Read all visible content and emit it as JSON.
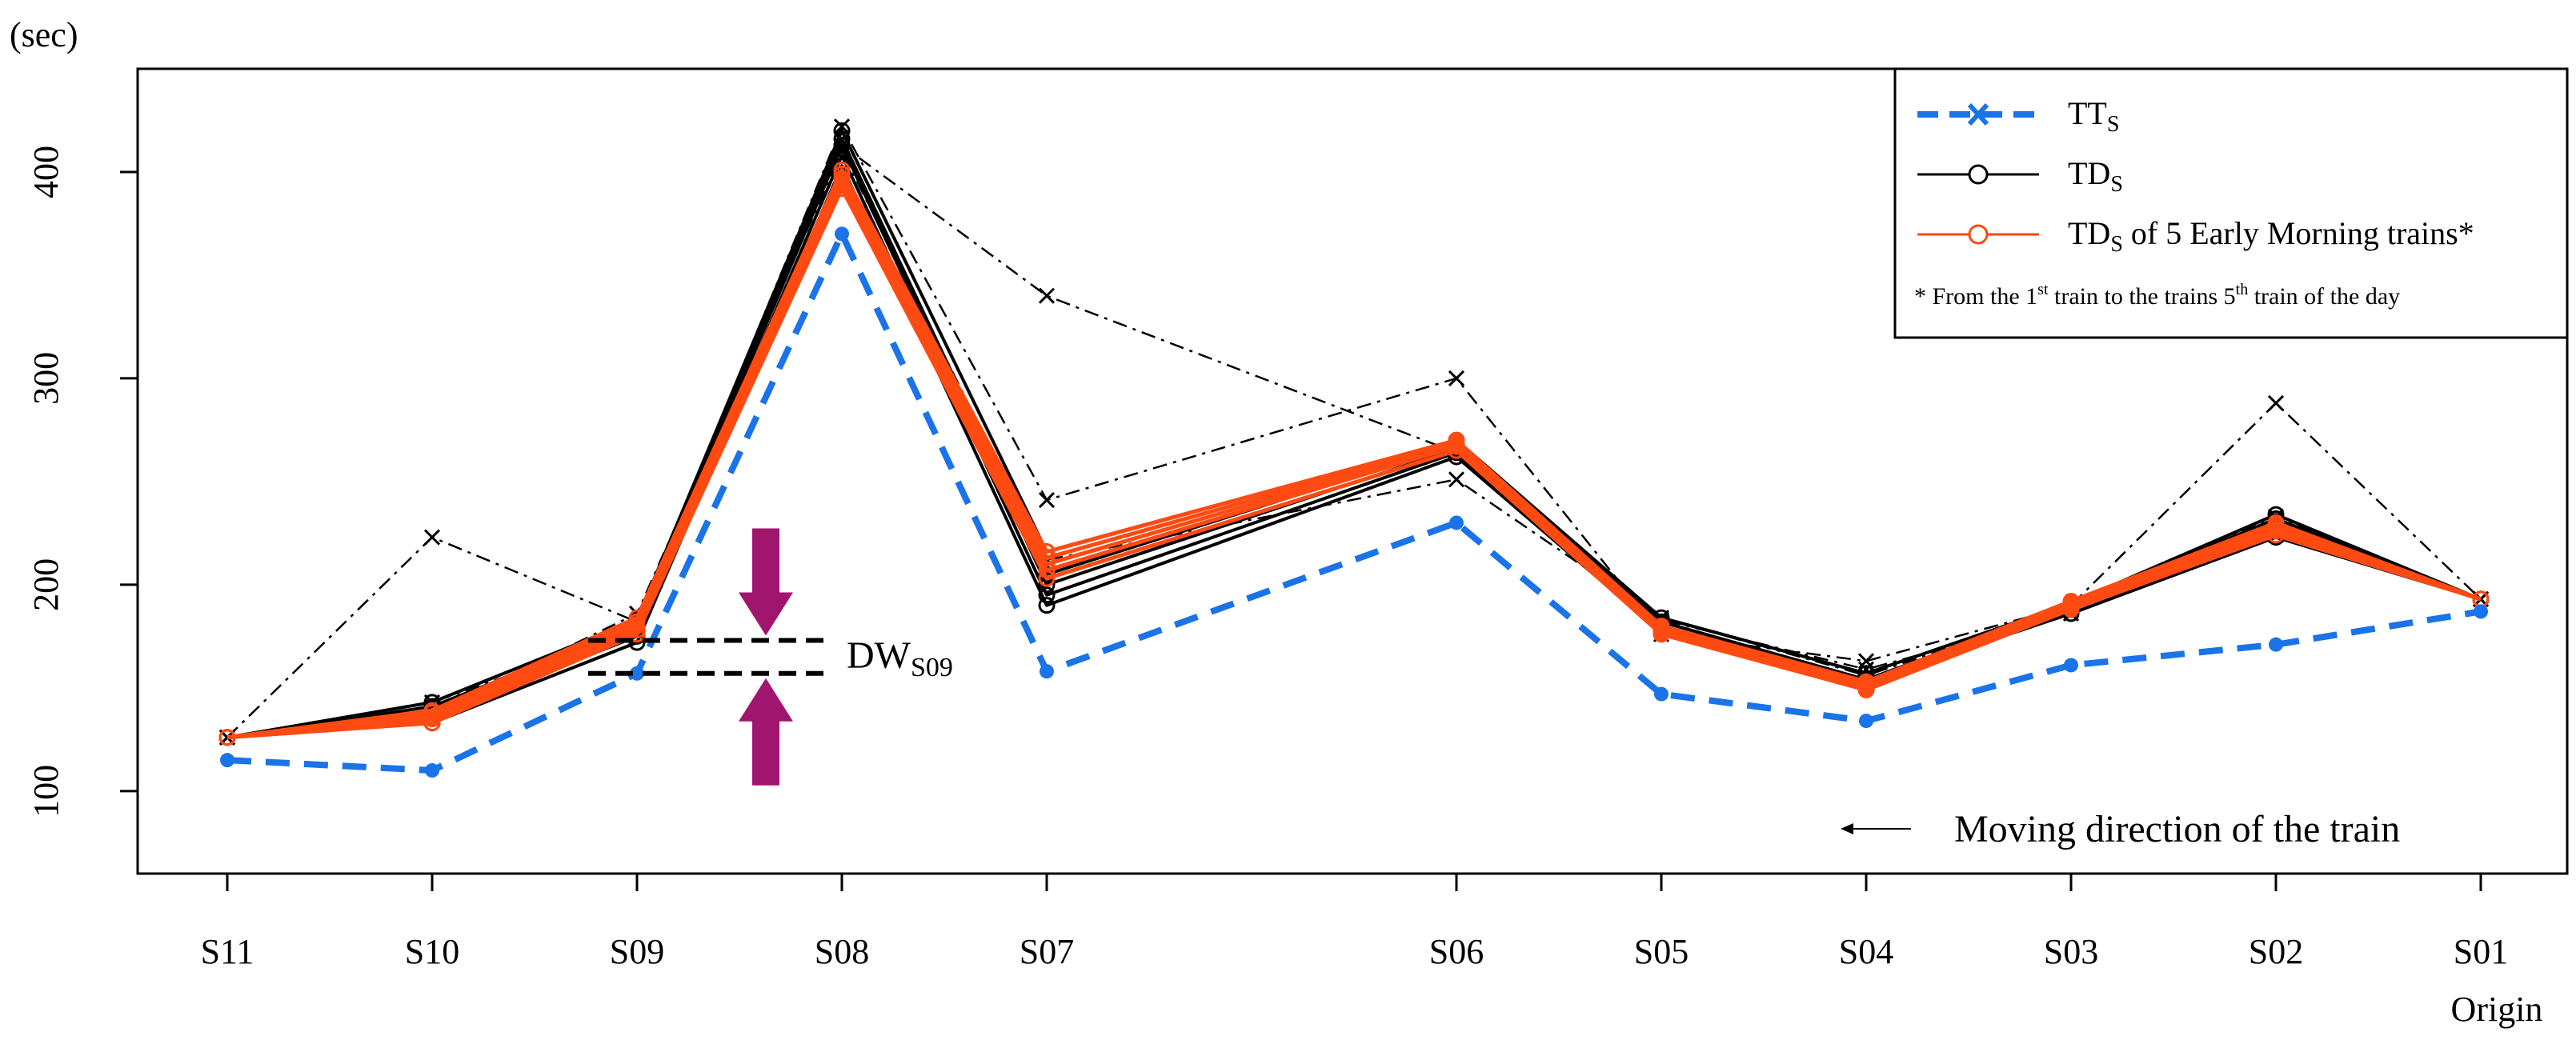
{
  "chart_data": {
    "type": "line",
    "y_unit": "(sec)",
    "ylim": [
      60,
      450
    ],
    "y_ticks": [
      "100",
      "200",
      "300",
      "400"
    ],
    "categories": [
      "S11",
      "S10",
      "S09",
      "S08",
      "S07",
      "S06",
      "S05",
      "S04",
      "S03",
      "S02",
      "S01"
    ],
    "x_positions": [
      0,
      1,
      2,
      3,
      4,
      6,
      7,
      8,
      9,
      10,
      11
    ],
    "x_sub_label": "Origin",
    "legend": {
      "tts_main": "TT",
      "tts_sub": "S",
      "tds_main": "TD",
      "tds_sub": "S",
      "tde_main": "TD",
      "tde_sub": "S",
      "tde_rest": " of 5 Early Morning trains*",
      "note_1": "* From the 1",
      "note_sup1": "st",
      "note_2": " train to the trains 5",
      "note_sup2": "th",
      "note_3": " train of the day"
    },
    "annotations": {
      "dw_main": "DW",
      "dw_sub": "S09",
      "dw_value_top": 173,
      "dw_value_bottom": 157,
      "direction_text": "Moving direction of the train"
    },
    "series": [
      {
        "name": "TT_S",
        "style": "tts",
        "values": [
          115,
          110,
          157,
          370,
          158,
          230,
          147,
          134,
          161,
          171,
          187
        ]
      },
      {
        "name": "TD_S",
        "style": "tds",
        "values": [
          126,
          133,
          172,
          403,
          190,
          262,
          177,
          153,
          186,
          223,
          193
        ]
      },
      {
        "name": "TD_S",
        "style": "tds",
        "values": [
          126,
          136,
          175,
          408,
          195,
          264,
          178,
          150,
          188,
          226,
          193
        ]
      },
      {
        "name": "TD_S",
        "style": "tds",
        "values": [
          126,
          139,
          178,
          413,
          200,
          266,
          180,
          152,
          189,
          229,
          193
        ]
      },
      {
        "name": "TD_S",
        "style": "tds",
        "values": [
          126,
          141,
          180,
          416,
          205,
          268,
          182,
          154,
          190,
          232,
          193
        ]
      },
      {
        "name": "TD_S",
        "style": "tds",
        "values": [
          126,
          143,
          183,
          420,
          216,
          270,
          184,
          157,
          191,
          234,
          193
        ]
      },
      {
        "name": "TD_S outlier",
        "style": "outlier",
        "values": [
          126,
          223,
          182,
          422,
          241,
          300,
          176,
          163,
          190,
          288,
          193
        ]
      },
      {
        "name": "TD_S outlier",
        "style": "outlier",
        "values": [
          126,
          143,
          178,
          413,
          340,
          264,
          184,
          156,
          189,
          233,
          193
        ]
      },
      {
        "name": "TD_S outlier",
        "style": "outlier",
        "values": [
          126,
          138,
          186,
          410,
          212,
          251,
          183,
          159,
          186,
          224,
          193
        ]
      },
      {
        "name": "TD_S of 5 Early Morning trains",
        "style": "tde",
        "values": [
          126,
          133,
          176,
          392,
          203,
          265,
          176,
          149,
          188,
          224,
          193
        ]
      },
      {
        "name": "TD_S of 5 Early Morning trains",
        "style": "tde",
        "values": [
          126,
          135,
          178,
          395,
          207,
          267,
          177,
          150,
          189,
          226,
          193
        ]
      },
      {
        "name": "TD_S of 5 Early Morning trains",
        "style": "tde",
        "values": [
          126,
          136,
          180,
          397,
          210,
          268,
          178,
          151,
          190,
          228,
          193
        ]
      },
      {
        "name": "TD_S of 5 Early Morning trains",
        "style": "tde",
        "values": [
          126,
          138,
          182,
          399,
          213,
          269,
          179,
          152,
          191,
          229,
          193
        ]
      },
      {
        "name": "TD_S of 5 Early Morning trains",
        "style": "tde",
        "values": [
          126,
          139,
          184,
          401,
          216,
          270,
          180,
          153,
          192,
          230,
          193
        ]
      }
    ],
    "colors": {
      "tts": "#1a73e8",
      "tds": "#000000",
      "tde": "#ff4a12",
      "arrow": "#a0166e"
    }
  }
}
